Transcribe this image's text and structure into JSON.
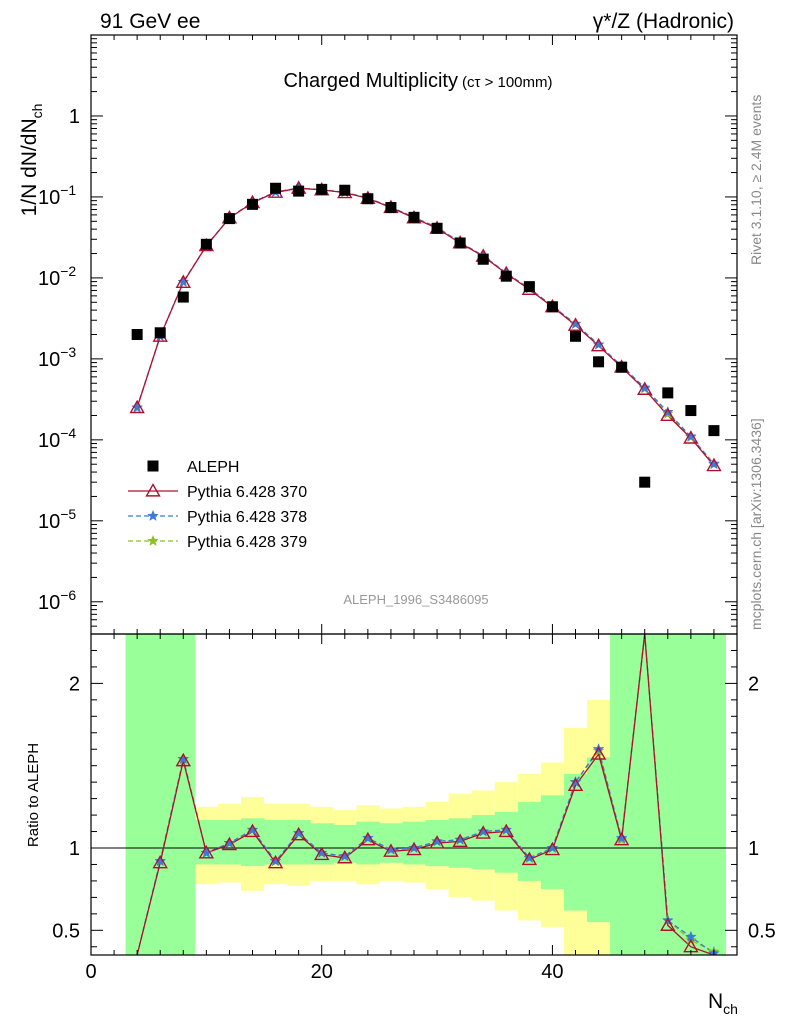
{
  "header": {
    "left": "91 GeV ee",
    "right": "γ*/Z (Hadronic)"
  },
  "side_labels": {
    "rivet": "Rivet 3.1.10, ≥ 2.4M events",
    "mcplots": "mcplots.cern.ch [arXiv:1306.3436]"
  },
  "chart_data": {
    "type": "scatter",
    "title": "Charged Multiplicity",
    "title_suffix": "(cτ > 100mm)",
    "analysis_label": "ALEPH_1996_S3486095",
    "xlabel": "N",
    "xlabel_sub": "ch",
    "ylabel": "1/N dN/dN",
    "ylabel_sub": "ch",
    "ratio_ylabel": "Ratio to ALEPH",
    "xlim": [
      0,
      56
    ],
    "ylim": [
      4e-07,
      10
    ],
    "ylog": true,
    "ratio_ylim": [
      0.35,
      2.3
    ],
    "x_ticks": [
      "0",
      "20",
      "40"
    ],
    "y_ticks": [
      "1",
      "10",
      "10",
      "10",
      "10",
      "10",
      "10"
    ],
    "y_tick_exponents": [
      "",
      "−1",
      "−2",
      "−3",
      "−4",
      "−5",
      "−6"
    ],
    "ratio_ticks": [
      "2",
      "1",
      "0.5"
    ],
    "legend_position": "lower-left",
    "x": [
      4,
      6,
      8,
      10,
      12,
      14,
      16,
      18,
      20,
      22,
      24,
      26,
      28,
      30,
      32,
      34,
      36,
      38,
      40,
      42,
      44,
      46,
      48,
      50,
      52,
      54
    ],
    "data": {
      "name": "ALEPH",
      "color": "#000000",
      "values": [
        0.002,
        0.0021,
        0.0058,
        0.026,
        0.054,
        0.081,
        0.128,
        0.118,
        0.124,
        0.121,
        0.095,
        0.074,
        0.056,
        0.041,
        0.027,
        0.017,
        0.0105,
        0.0078,
        0.0044,
        0.0019,
        0.00092,
        0.00079,
        3e-05,
        0.00038,
        0.00023,
        0.00013
      ]
    },
    "series": [
      {
        "name": "Pythia 6.428 370",
        "color": "#b01030",
        "style": "solid",
        "marker": "triangle",
        "values": [
          0.00025,
          0.0019,
          0.0088,
          0.025,
          0.055,
          0.085,
          0.114,
          0.128,
          0.122,
          0.113,
          0.096,
          0.074,
          0.055,
          0.041,
          0.027,
          0.0185,
          0.0113,
          0.0072,
          0.0044,
          0.0026,
          0.00145,
          0.00079,
          0.00042,
          0.0002,
          0.000105,
          4.8e-05
        ]
      },
      {
        "name": "Pythia 6.428 378",
        "color": "#3a7ad9",
        "style": "dashed",
        "marker": "star",
        "values": [
          0.00025,
          0.0019,
          0.0089,
          0.025,
          0.055,
          0.086,
          0.115,
          0.129,
          0.123,
          0.114,
          0.097,
          0.075,
          0.056,
          0.042,
          0.0275,
          0.0188,
          0.0115,
          0.0074,
          0.0045,
          0.0027,
          0.0015,
          0.00082,
          0.00044,
          0.00022,
          0.00011,
          5e-05
        ]
      },
      {
        "name": "Pythia 6.428 379",
        "color": "#8cc21f",
        "style": "dashed",
        "marker": "star",
        "values": [
          0.00025,
          0.0019,
          0.0089,
          0.025,
          0.055,
          0.086,
          0.115,
          0.129,
          0.123,
          0.114,
          0.097,
          0.075,
          0.056,
          0.042,
          0.0275,
          0.0188,
          0.0115,
          0.0074,
          0.0045,
          0.0027,
          0.0015,
          0.00081,
          0.00043,
          0.00021,
          0.000108,
          5.1e-05
        ]
      }
    ],
    "ratio": {
      "band_x_edges": [
        3,
        5,
        7,
        9,
        11,
        13,
        15,
        17,
        19,
        21,
        23,
        25,
        27,
        29,
        31,
        33,
        35,
        37,
        39,
        41,
        43,
        45,
        47,
        49,
        51,
        53,
        55
      ],
      "green_band": [
        [
          0.35,
          2.3
        ],
        [
          0.35,
          2.3
        ],
        [
          0.35,
          2.3
        ],
        [
          0.9,
          1.17
        ],
        [
          0.9,
          1.17
        ],
        [
          0.89,
          1.18
        ],
        [
          0.9,
          1.17
        ],
        [
          0.9,
          1.17
        ],
        [
          0.9,
          1.15
        ],
        [
          0.91,
          1.14
        ],
        [
          0.9,
          1.16
        ],
        [
          0.91,
          1.15
        ],
        [
          0.9,
          1.16
        ],
        [
          0.89,
          1.17
        ],
        [
          0.88,
          1.18
        ],
        [
          0.87,
          1.2
        ],
        [
          0.85,
          1.22
        ],
        [
          0.8,
          1.28
        ],
        [
          0.75,
          1.32
        ],
        [
          0.62,
          1.45
        ],
        [
          0.55,
          1.55
        ],
        [
          0.35,
          2.3
        ],
        [
          0.35,
          2.3
        ],
        [
          0.35,
          2.3
        ],
        [
          0.35,
          2.3
        ],
        [
          0.35,
          2.3
        ]
      ],
      "yellow_band": [
        [
          0.35,
          2.3
        ],
        [
          0.35,
          2.2
        ],
        [
          0.6,
          1.8
        ],
        [
          0.78,
          1.25
        ],
        [
          0.79,
          1.27
        ],
        [
          0.74,
          1.31
        ],
        [
          0.78,
          1.27
        ],
        [
          0.77,
          1.27
        ],
        [
          0.8,
          1.25
        ],
        [
          0.8,
          1.23
        ],
        [
          0.78,
          1.26
        ],
        [
          0.8,
          1.24
        ],
        [
          0.79,
          1.25
        ],
        [
          0.75,
          1.28
        ],
        [
          0.7,
          1.33
        ],
        [
          0.68,
          1.35
        ],
        [
          0.62,
          1.4
        ],
        [
          0.56,
          1.45
        ],
        [
          0.52,
          1.52
        ],
        [
          0.35,
          1.73
        ],
        [
          0.35,
          1.9
        ],
        [
          0.35,
          2.3
        ],
        [
          0.35,
          2.3
        ],
        [
          0.35,
          2.3
        ],
        [
          0.35,
          2.3
        ],
        [
          0.35,
          2.3
        ]
      ],
      "series": [
        {
          "name": "Pythia 6.428 370",
          "values": [
            0.13,
            0.91,
            1.53,
            0.97,
            1.02,
            1.1,
            0.91,
            1.08,
            0.96,
            0.94,
            1.05,
            0.98,
            0.99,
            1.03,
            1.04,
            1.09,
            1.1,
            0.93,
            0.99,
            1.38,
            1.57,
            1.05,
            5.0,
            0.53,
            0.4,
            0.33
          ]
        },
        {
          "name": "Pythia 6.428 378",
          "values": [
            0.13,
            0.92,
            1.54,
            0.97,
            1.03,
            1.11,
            0.92,
            1.09,
            0.97,
            0.95,
            1.06,
            0.99,
            1.0,
            1.04,
            1.05,
            1.1,
            1.11,
            0.94,
            1.0,
            1.4,
            1.6,
            1.06,
            5.0,
            0.56,
            0.46,
            0.36
          ]
        },
        {
          "name": "Pythia 6.428 379",
          "values": [
            0.13,
            0.92,
            1.54,
            0.97,
            1.03,
            1.11,
            0.92,
            1.09,
            0.97,
            0.95,
            1.06,
            0.99,
            1.0,
            1.04,
            1.05,
            1.1,
            1.11,
            0.94,
            1.0,
            1.4,
            1.59,
            1.05,
            5.0,
            0.56,
            0.44,
            0.37
          ]
        }
      ]
    }
  }
}
